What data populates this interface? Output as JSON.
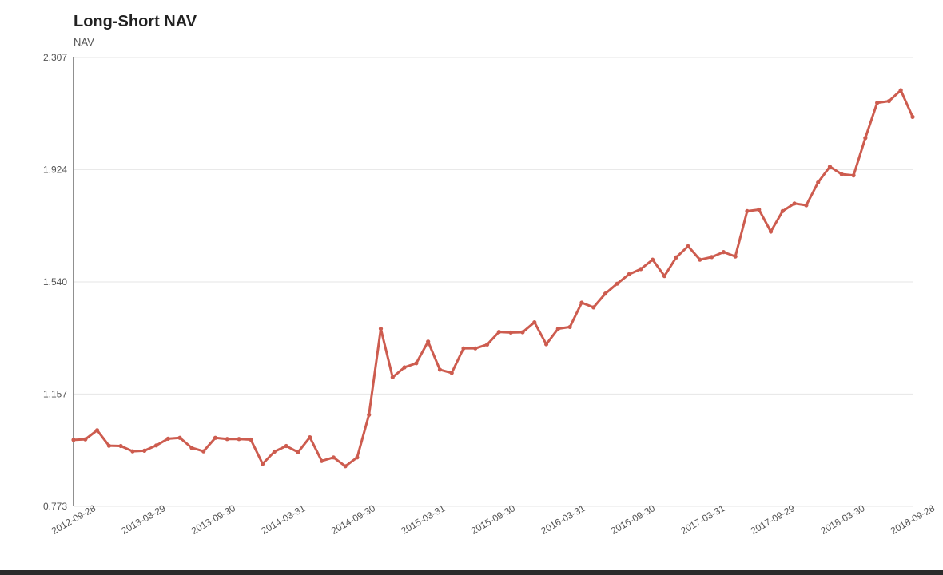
{
  "chart_data": {
    "type": "line",
    "title": "Long-Short NAV",
    "subtitle": "NAV",
    "xlabel": "",
    "ylabel": "",
    "ylim": [
      0.773,
      2.307
    ],
    "y_ticks": [
      "0.773",
      "1.157",
      "1.540",
      "1.924",
      "2.307"
    ],
    "x_ticks": [
      "2012-09-28",
      "2013-03-29",
      "2013-09-30",
      "2014-03-31",
      "2014-09-30",
      "2015-03-31",
      "2015-09-30",
      "2016-03-31",
      "2016-09-30",
      "2017-03-31",
      "2017-09-29",
      "2018-03-30",
      "2018-09-28"
    ],
    "grid": true,
    "legend": "none",
    "colors": {
      "line": "#cd5c4f",
      "grid": "#e6e6e6",
      "axis": "#222222"
    },
    "series": [
      {
        "values": [
          1.0,
          1.002,
          1.033,
          0.98,
          0.979,
          0.961,
          0.963,
          0.981,
          1.004,
          1.007,
          0.973,
          0.961,
          1.007,
          1.003,
          1.003,
          1.001,
          0.918,
          0.96,
          0.979,
          0.958,
          1.009,
          0.928,
          0.94,
          0.91,
          0.94,
          1.086,
          1.38,
          1.214,
          1.248,
          1.262,
          1.336,
          1.24,
          1.229,
          1.313,
          1.313,
          1.326,
          1.369,
          1.367,
          1.368,
          1.402,
          1.327,
          1.38,
          1.386,
          1.469,
          1.453,
          1.5,
          1.534,
          1.566,
          1.584,
          1.616,
          1.56,
          1.624,
          1.662,
          1.616,
          1.625,
          1.642,
          1.627,
          1.782,
          1.787,
          1.712,
          1.782,
          1.808,
          1.802,
          1.88,
          1.934,
          1.908,
          1.904,
          2.032,
          2.152,
          2.158,
          2.195,
          2.104
        ]
      }
    ]
  }
}
